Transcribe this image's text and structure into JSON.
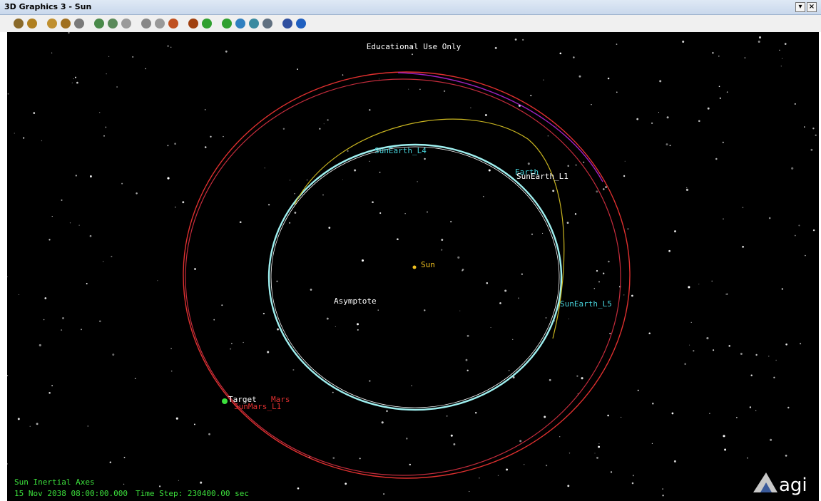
{
  "window": {
    "title": "3D Graphics 3 - Sun"
  },
  "viewport": {
    "watermark": "Educational Use Only",
    "labels": [
      "SunEarth_L4",
      "Earth",
      "SunEarth_L1",
      "Sun",
      "Asymptote",
      "SunEarth_L5",
      "Target",
      "Mars",
      "SunMars_L1"
    ]
  },
  "status": {
    "frame": "Sun Inertial Axes",
    "time": "15 Nov 2038 08:00:00.000",
    "time_step": "Time Step: 230400.00 sec"
  },
  "logo": "agi"
}
